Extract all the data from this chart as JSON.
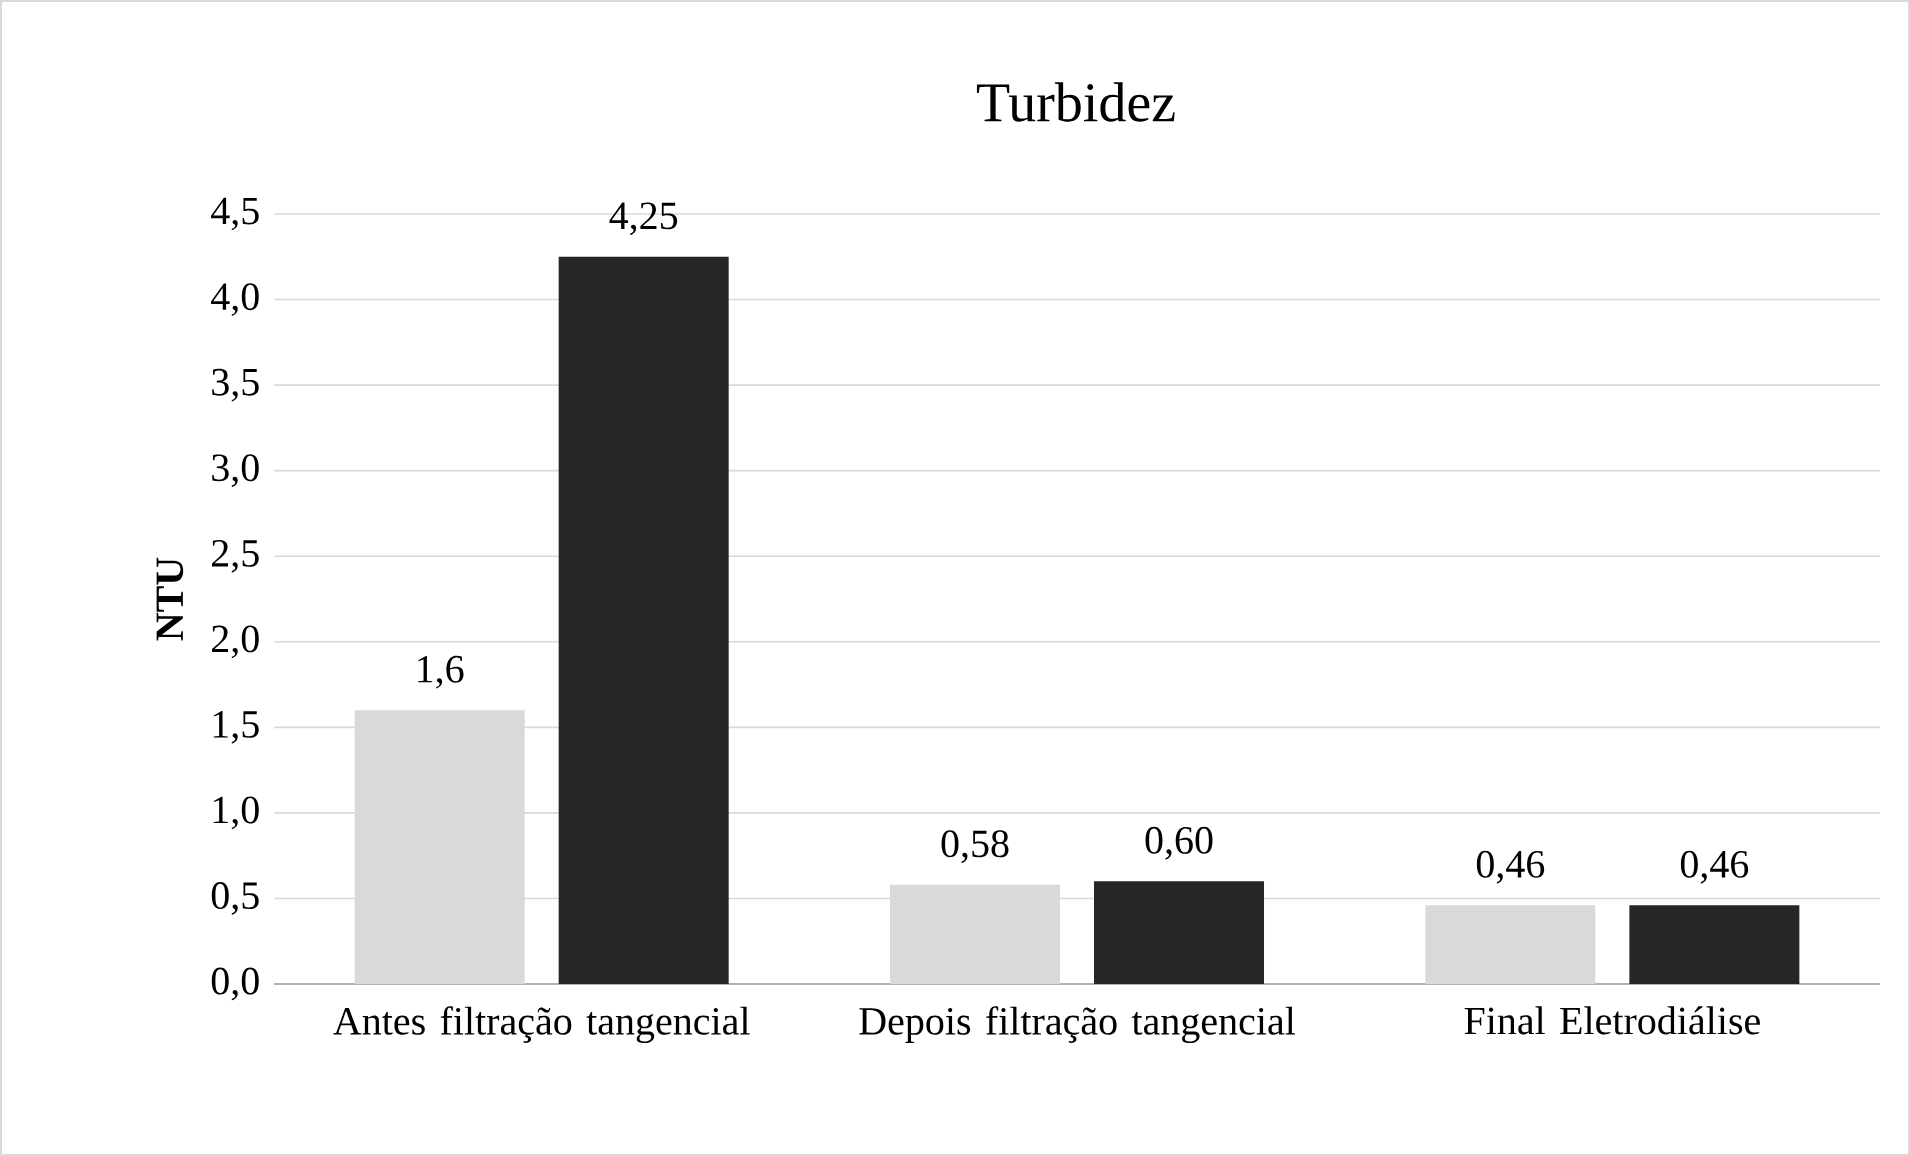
{
  "chart_data": {
    "type": "bar",
    "title": "Turbidez",
    "ylabel": "NTU",
    "categories": [
      "Antes filtração tangencial",
      "Depois filtração tangencial",
      "Final Eletrodiálise"
    ],
    "series": [
      {
        "color": "#d9d9d9",
        "values": [
          1.6,
          0.58,
          0.46
        ],
        "value_labels": [
          "1,6",
          "0,58",
          "0,46"
        ]
      },
      {
        "color": "#262626",
        "values": [
          4.25,
          0.6,
          0.46
        ],
        "value_labels": [
          "4,25",
          "0,60",
          "0,46"
        ]
      }
    ],
    "ylim": [
      0,
      4.5
    ],
    "yticks": [
      {
        "value": 0,
        "label": "0,0"
      },
      {
        "value": 0.5,
        "label": "0,5"
      },
      {
        "value": 1,
        "label": "1,0"
      },
      {
        "value": 1.5,
        "label": "1,5"
      },
      {
        "value": 2,
        "label": "2,0"
      },
      {
        "value": 2.5,
        "label": "2,5"
      },
      {
        "value": 3,
        "label": "3,0"
      },
      {
        "value": 3.5,
        "label": "3,5"
      },
      {
        "value": 4,
        "label": "4,0"
      },
      {
        "value": 4.5,
        "label": "4,5"
      }
    ],
    "grid": "y"
  }
}
